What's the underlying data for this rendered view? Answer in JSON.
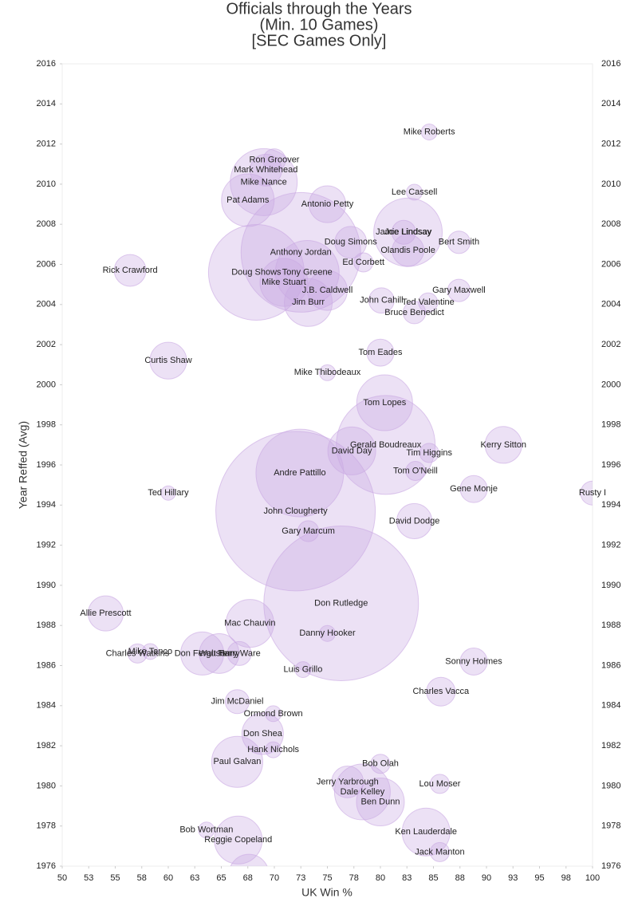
{
  "chart_data": {
    "type": "bubble",
    "title": [
      "Officials through the Years",
      "(Min. 10 Games)",
      "[SEC Games Only]"
    ],
    "xlabel": "UK Win %",
    "ylabel": "Year Reffed (Avg)",
    "color": "#c9a8e3",
    "xlim": [
      50,
      100
    ],
    "ylim": [
      1976,
      2016
    ],
    "xticks": [
      50,
      {
        "value": 52.5,
        "label": "53"
      },
      55,
      {
        "value": 57.5,
        "label": "58"
      },
      60,
      {
        "value": 62.5,
        "label": "63"
      },
      65,
      {
        "value": 67.5,
        "label": "68"
      },
      70,
      {
        "value": 72.5,
        "label": "73"
      },
      75,
      {
        "value": 77.5,
        "label": "78"
      },
      80,
      {
        "value": 82.5,
        "label": "83"
      },
      85,
      {
        "value": 87.5,
        "label": "88"
      },
      90,
      {
        "value": 92.5,
        "label": "93"
      },
      95,
      {
        "value": 97.5,
        "label": "98"
      },
      100
    ],
    "yticks": [
      1976,
      1978,
      1980,
      1982,
      1984,
      1986,
      1988,
      1990,
      1992,
      1994,
      1996,
      1998,
      2000,
      2002,
      2004,
      2006,
      2008,
      2010,
      2012,
      2014,
      2016
    ],
    "labels": [
      "Mike Roberts",
      "Ron Groover",
      "Mark Whitehead",
      "Mike Nance",
      "Pat Adams",
      "Antonio Petty",
      "Lee Cassell",
      "Jamie Lindsay",
      "Joe Lindsay",
      "Bert Smith",
      "Doug Simons",
      "Olandis Poole",
      "Anthony Jordan",
      "Ed Corbett",
      "Rick Crawford",
      "Doug Shows",
      "Tony Greene",
      "Mike Stuart",
      "J.B. Caldwell",
      "Gary Maxwell",
      "Jim Burr",
      "John Cahill",
      "Ted Valentine",
      "Bruce Benedict",
      "Tom Eades",
      "Curtis Shaw",
      "Mike Thibodeaux",
      "Tom Lopes",
      "Gerald Boudreaux",
      "Kerry Sitton",
      "David Day",
      "Tim Higgins",
      "Tom O'Neill",
      "Andre Pattillo",
      "Gene Monje",
      "Ted Hillary",
      "Rusty I",
      "John Clougherty",
      "David Dodge",
      "Gary Marcum",
      "Don Rutledge",
      "Allie Prescott",
      "Mac Chauvin",
      "Danny Hooker",
      "Mike Tanco",
      "Charles Watkins",
      "Don Ferguson",
      "Walt Harry",
      "Terry Ware",
      "Sonny Holmes",
      "Luis Grillo",
      "Charles Vacca",
      "Jim McDaniel",
      "Ormond Brown",
      "Don Shea",
      "Hank Nichols",
      "Paul Galvan",
      "Bob Olah",
      "Jerry Yarbrough",
      "Lou Moser",
      "Dale Kelley",
      "Ben Dunn",
      "Bob Wortman",
      "Ken Lauderdale",
      "Reggie Copeland",
      "Jack Manton",
      null
    ],
    "x": [
      84.6,
      70.0,
      69.2,
      69.0,
      67.5,
      75.0,
      83.2,
      82.2,
      82.6,
      87.4,
      77.2,
      82.6,
      72.5,
      78.4,
      56.4,
      68.3,
      73.1,
      70.9,
      75.0,
      87.4,
      73.2,
      80.1,
      84.5,
      83.2,
      80.0,
      60.0,
      75.0,
      80.4,
      80.5,
      91.6,
      77.3,
      84.6,
      83.3,
      72.4,
      88.8,
      60.0,
      100.0,
      72.0,
      83.2,
      73.2,
      76.3,
      54.1,
      67.7,
      75.0,
      58.3,
      57.1,
      63.2,
      64.8,
      66.7,
      88.8,
      72.7,
      85.7,
      66.5,
      69.9,
      68.9,
      69.9,
      66.5,
      80.0,
      76.9,
      85.6,
      78.3,
      80.0,
      63.6,
      84.3,
      66.6,
      85.6,
      67.6
    ],
    "y": [
      2012.6,
      2011.2,
      2010.7,
      2010.1,
      2009.2,
      2009.0,
      2009.6,
      2007.6,
      2007.6,
      2007.1,
      2007.1,
      2006.7,
      2006.6,
      2006.1,
      2005.7,
      2005.6,
      2005.6,
      2005.1,
      2004.7,
      2004.7,
      2004.1,
      2004.2,
      2004.1,
      2003.6,
      2001.6,
      2001.2,
      2000.6,
      1999.1,
      1997.0,
      1997.0,
      1996.7,
      1996.6,
      1995.7,
      1995.6,
      1994.8,
      1994.6,
      1994.6,
      1993.7,
      1993.2,
      1992.7,
      1989.1,
      1988.6,
      1988.1,
      1987.6,
      1986.7,
      1986.6,
      1986.6,
      1986.6,
      1986.6,
      1986.2,
      1985.8,
      1984.7,
      1984.2,
      1983.6,
      1982.6,
      1981.8,
      1981.2,
      1981.1,
      1980.2,
      1980.1,
      1979.7,
      1979.2,
      1977.8,
      1977.7,
      1977.3,
      1976.7,
      1975.6
    ],
    "sizes": [
      11,
      22,
      44,
      196,
      121,
      59,
      11,
      25,
      205,
      22,
      44,
      44,
      625,
      16,
      44,
      400,
      178,
      100,
      69,
      22,
      100,
      28,
      16,
      22,
      32,
      59,
      11,
      136,
      427,
      59,
      100,
      16,
      16,
      336,
      32,
      9,
      25,
      1111,
      54,
      19,
      1045,
      54,
      100,
      11,
      11,
      16,
      81,
      69,
      25,
      32,
      11,
      36,
      25,
      11,
      75,
      11,
      114,
      16,
      44,
      16,
      136,
      100,
      11,
      100,
      100,
      16,
      69
    ]
  }
}
